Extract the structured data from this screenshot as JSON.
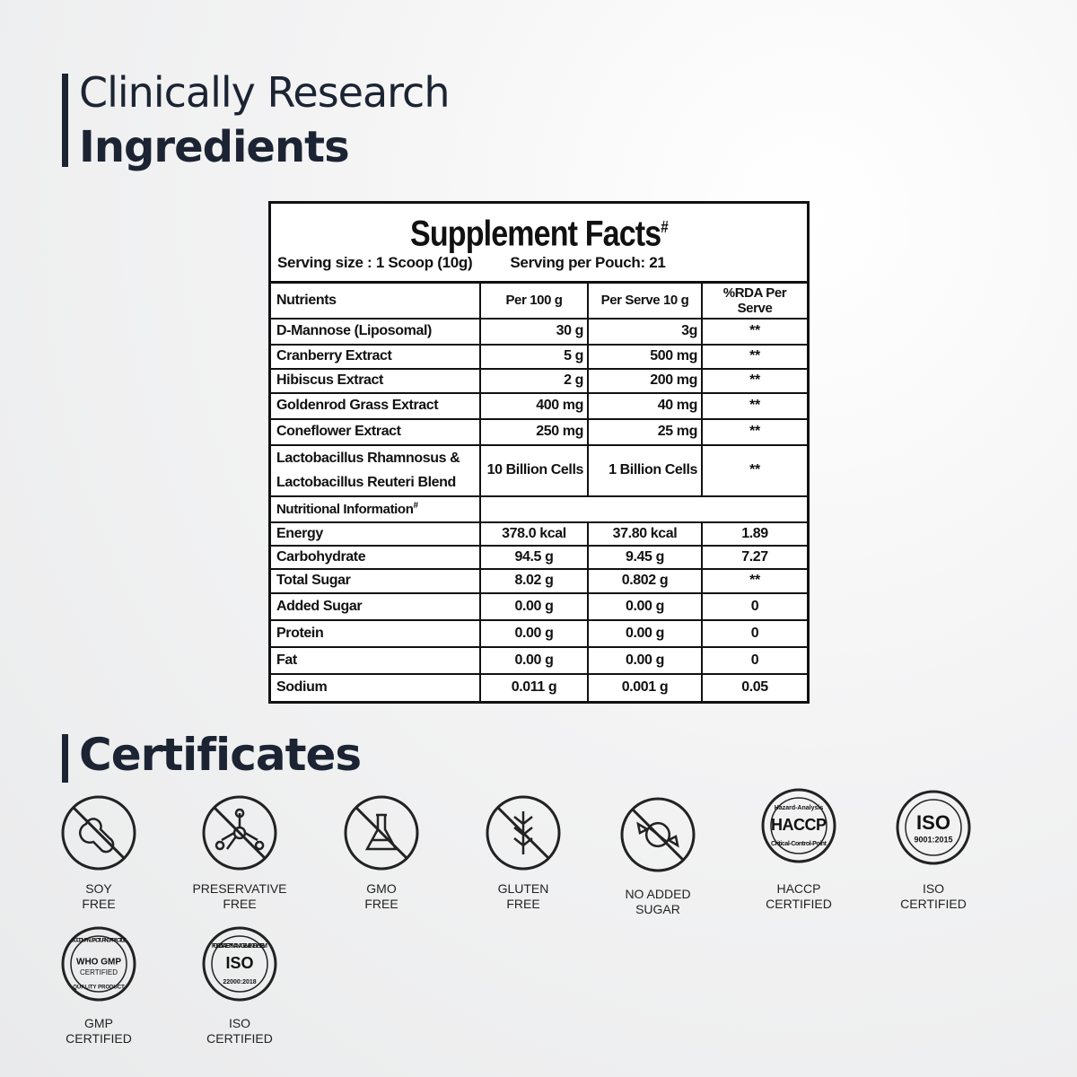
{
  "header": {
    "line1": "Clinically Research",
    "line2": "Ingredients"
  },
  "facts": {
    "title": "Supplement Facts",
    "title_mark": "#",
    "serving_size": "Serving size : 1 Scoop (10g)",
    "servings": "Serving per Pouch: 21",
    "columns": [
      "Nutrients",
      "Per 100 g",
      "Per Serve 10 g",
      "%RDA Per Serve"
    ],
    "rows": [
      [
        "D-Mannose (Liposomal)",
        "30 g",
        "3g",
        "**"
      ],
      [
        "Cranberry Extract",
        "5 g",
        "500 mg",
        "**"
      ],
      [
        "Hibiscus Extract",
        "2 g",
        "200 mg",
        "**"
      ],
      [
        "Goldenrod Grass Extract",
        "400 mg",
        "40 mg",
        "**"
      ],
      [
        "Coneflower Extract",
        "250 mg",
        "25 mg",
        "**"
      ],
      [
        "Lactobacillus Rhamnosus & Lactobacillus Reuteri Blend",
        "10 Billion Cells",
        "1 Billion Cells",
        "**"
      ]
    ],
    "section": "Nutritional Information",
    "section_mark": "#",
    "nutrition_rows": [
      [
        "Energy",
        "378.0 kcal",
        "37.80 kcal",
        "1.89"
      ],
      [
        "Carbohydrate",
        "94.5 g",
        "9.45 g",
        "7.27"
      ],
      [
        "Total Sugar",
        "8.02 g",
        "0.802 g",
        "**"
      ],
      [
        "Added Sugar",
        "0.00 g",
        "0.00 g",
        "0"
      ],
      [
        "Protein",
        "0.00 g",
        "0.00 g",
        "0"
      ],
      [
        "Fat",
        "0.00 g",
        "0.00 g",
        "0"
      ],
      [
        "Sodium",
        "0.011 g",
        "0.001 g",
        "0.05"
      ]
    ]
  },
  "certificates": {
    "title": "Certificates",
    "items": [
      {
        "label": [
          "SOY",
          "FREE"
        ]
      },
      {
        "label": [
          "PRESERVATIVE",
          "FREE"
        ]
      },
      {
        "label": [
          "GMO",
          "FREE"
        ]
      },
      {
        "label": [
          "GLUTEN",
          "FREE"
        ]
      },
      {
        "label": [
          "NO ADDED",
          "SUGAR"
        ]
      },
      {
        "label": [
          "HACCP",
          "CERTIFIED"
        ],
        "badge": [
          "Hazard-Analysis",
          "HACCP",
          "Critical-Control-Point"
        ]
      },
      {
        "label": [
          "ISO",
          "CERTIFIED"
        ],
        "badge": [
          "ISO",
          "9001:2015"
        ]
      },
      {
        "label": [
          "GMP",
          "CERTIFIED"
        ],
        "badge": [
          "GOOD MANUFACTURING PRACTICE",
          "WHO GMP",
          "CERTIFIED",
          "QUALITY PRODUCT"
        ]
      },
      {
        "label": [
          "ISO",
          "CERTIFIED"
        ],
        "badge": [
          "FOOD SAFETY MANAGEMENT SYSTEM",
          "ISO",
          "22000:2018"
        ]
      }
    ]
  }
}
